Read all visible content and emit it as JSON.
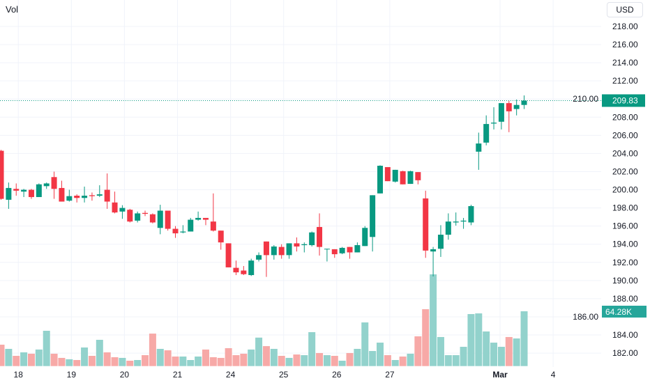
{
  "header": {
    "volume_label": "Vol",
    "currency": "USD"
  },
  "colors": {
    "up": "#089981",
    "down": "#f23645",
    "vol_up": "#92d2cc",
    "vol_down": "#f7a9a7",
    "price_line": "#089981",
    "grid": "#f0f3fa",
    "volume_badge": "#26a69a"
  },
  "chart_data": {
    "type": "candlestick",
    "title": "",
    "currency": "USD",
    "last_price": 209.83,
    "last_price_label": "209.83",
    "last_volume_label": "64.28K",
    "ylim": [
      180.5,
      219.5
    ],
    "y_ticks": [
      "218.00",
      "216.00",
      "214.00",
      "212.00",
      "210.00",
      "208.00",
      "206.00",
      "204.00",
      "202.00",
      "200.00",
      "198.00",
      "196.00",
      "194.00",
      "192.00",
      "190.00",
      "188.00",
      "186.00",
      "184.00",
      "182.00"
    ],
    "x_ticks": [
      {
        "label": "18",
        "index": 2
      },
      {
        "label": "19",
        "index": 9
      },
      {
        "label": "20",
        "index": 16
      },
      {
        "label": "21",
        "index": 23
      },
      {
        "label": "24",
        "index": 30
      },
      {
        "label": "25",
        "index": 37
      },
      {
        "label": "26",
        "index": 44
      },
      {
        "label": "27",
        "index": 51
      },
      {
        "label": "Mar",
        "index": 65
      },
      {
        "label": "4",
        "index": 72
      }
    ],
    "volume_unit": "K",
    "ohlcv": [
      [
        204.3,
        204.4,
        198.9,
        199.0,
        25.1
      ],
      [
        198.9,
        200.8,
        197.9,
        200.2,
        20.2
      ],
      [
        200.1,
        200.7,
        199.35,
        199.9,
        12.0
      ],
      [
        199.8,
        200.1,
        199.2,
        200.0,
        16.1
      ],
      [
        200.0,
        200.1,
        199.0,
        199.2,
        14.5
      ],
      [
        199.2,
        200.7,
        199.2,
        200.6,
        19.4
      ],
      [
        200.4,
        200.8,
        200.1,
        200.7,
        41.4
      ],
      [
        201.4,
        202.0,
        199.0,
        200.1,
        14.5
      ],
      [
        200.2,
        201.0,
        198.7,
        198.7,
        9.6
      ],
      [
        198.8,
        200.0,
        198.7,
        199.3,
        8.0
      ],
      [
        199.35,
        199.5,
        198.6,
        199.1,
        7.1
      ],
      [
        199.1,
        200.35,
        198.6,
        199.35,
        21.8
      ],
      [
        199.4,
        199.7,
        198.8,
        199.3,
        12.0
      ],
      [
        199.35,
        200.5,
        199.2,
        199.5,
        30.8
      ],
      [
        200.0,
        201.8,
        197.9,
        198.7,
        16.1
      ],
      [
        198.6,
        199.8,
        197.4,
        197.5,
        10.4
      ],
      [
        197.6,
        198.3,
        196.8,
        198.0,
        9.6
      ],
      [
        197.8,
        197.9,
        196.4,
        196.5,
        6.3
      ],
      [
        196.6,
        197.6,
        196.4,
        197.4,
        7.1
      ],
      [
        197.45,
        197.7,
        197.1,
        197.35,
        12.8
      ],
      [
        197.3,
        197.4,
        196.3,
        196.4,
        38.1
      ],
      [
        195.8,
        198.35,
        195.1,
        197.7,
        20.2
      ],
      [
        197.7,
        197.7,
        195.5,
        195.7,
        18.5
      ],
      [
        195.7,
        196.0,
        194.7,
        195.2,
        11.2
      ],
      [
        195.3,
        196.1,
        195.2,
        195.4,
        11.2
      ],
      [
        195.4,
        196.9,
        195.4,
        196.7,
        7.1
      ],
      [
        196.7,
        197.6,
        196.6,
        196.9,
        11.2
      ],
      [
        196.9,
        196.9,
        196.1,
        196.7,
        19.4
      ],
      [
        196.5,
        199.6,
        195.4,
        195.5,
        10.4
      ],
      [
        195.5,
        195.5,
        193.4,
        194.2,
        9.6
      ],
      [
        194.1,
        194.1,
        191.45,
        191.45,
        21.0
      ],
      [
        191.4,
        192.2,
        190.6,
        190.9,
        12.8
      ],
      [
        191.1,
        191.6,
        190.6,
        190.7,
        14.5
      ],
      [
        190.6,
        192.4,
        190.5,
        192.2,
        19.4
      ],
      [
        192.3,
        193.1,
        192.1,
        192.8,
        33.4
      ],
      [
        194.3,
        194.3,
        190.4,
        192.8,
        23.4
      ],
      [
        192.8,
        193.9,
        192.3,
        193.75,
        20.2
      ],
      [
        193.7,
        194.0,
        192.4,
        192.8,
        12.0
      ],
      [
        192.8,
        194.1,
        192.4,
        194.1,
        9.6
      ],
      [
        194.1,
        194.75,
        193.2,
        193.75,
        13.6
      ],
      [
        193.9,
        194.2,
        193.1,
        194.0,
        12.8
      ],
      [
        193.9,
        195.4,
        193.75,
        195.3,
        39.8
      ],
      [
        195.9,
        197.4,
        192.75,
        193.7,
        15.3
      ],
      [
        193.45,
        193.5,
        192.1,
        193.5,
        12.8
      ],
      [
        193.45,
        193.45,
        192.5,
        192.9,
        12.0
      ],
      [
        193.0,
        193.7,
        192.9,
        193.6,
        6.3
      ],
      [
        193.7,
        193.7,
        192.4,
        193.1,
        15.3
      ],
      [
        193.1,
        194.2,
        193.1,
        193.9,
        20.2
      ],
      [
        193.8,
        196.0,
        193.8,
        195.8,
        51.2
      ],
      [
        194.8,
        199.4,
        193.2,
        199.4,
        17.7
      ],
      [
        199.6,
        202.7,
        199.6,
        202.65,
        27.5
      ],
      [
        202.5,
        202.5,
        200.95,
        200.95,
        12.8
      ],
      [
        200.9,
        202.2,
        200.8,
        202.2,
        7.1
      ],
      [
        202.05,
        202.1,
        200.6,
        200.6,
        11.2
      ],
      [
        200.65,
        202.1,
        200.65,
        202.05,
        14.5
      ],
      [
        201.95,
        201.95,
        200.6,
        201.05,
        34.9
      ],
      [
        199.05,
        199.9,
        192.5,
        193.3,
        66.7
      ],
      [
        193.2,
        193.7,
        190.45,
        193.45,
        107.6
      ],
      [
        193.5,
        196.1,
        192.6,
        195.05,
        34.1
      ],
      [
        195.05,
        197.4,
        194.5,
        196.5,
        12.8
      ],
      [
        196.4,
        197.5,
        196.05,
        196.5,
        12.8
      ],
      [
        196.5,
        196.9,
        195.7,
        196.6,
        22.6
      ],
      [
        196.4,
        198.35,
        196.1,
        198.2,
        61.0
      ],
      [
        204.2,
        206.3,
        202.2,
        205.1,
        61.8
      ],
      [
        205.2,
        208.2,
        204.9,
        207.25,
        40.6
      ],
      [
        207.3,
        209.1,
        206.65,
        207.4,
        27.5
      ],
      [
        207.5,
        209.55,
        206.65,
        209.55,
        22.6
      ],
      [
        209.55,
        209.8,
        206.35,
        208.65,
        34.1
      ],
      [
        208.9,
        209.95,
        208.2,
        209.35,
        32.4
      ],
      [
        209.35,
        210.4,
        208.9,
        209.83,
        64.28
      ]
    ]
  }
}
